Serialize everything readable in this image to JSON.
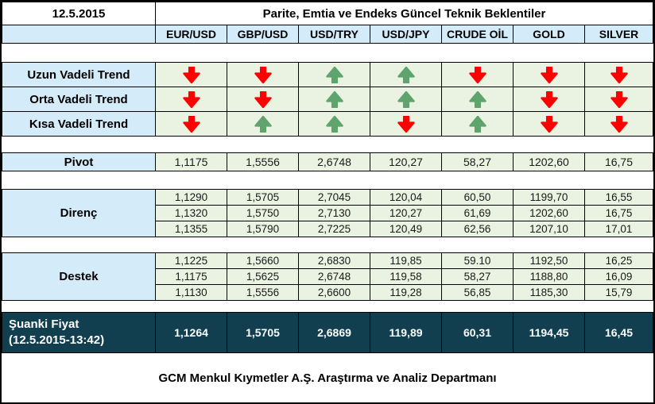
{
  "header": {
    "date": "12.5.2015",
    "title": "Parite, Emtia ve Endeks Güncel Teknik Beklentiler",
    "columns": [
      "EUR/USD",
      "GBP/USD",
      "USD/TRY",
      "USD/JPY",
      "CRUDE OİL",
      "GOLD",
      "SILVER"
    ]
  },
  "trends": {
    "rows": [
      {
        "label": "Uzun Vadeli Trend",
        "directions": [
          "down",
          "down",
          "up",
          "up",
          "down",
          "down",
          "down"
        ]
      },
      {
        "label": "Orta Vadeli Trend",
        "directions": [
          "down",
          "down",
          "up",
          "up",
          "up",
          "down",
          "down"
        ]
      },
      {
        "label": "Kısa Vadeli Trend",
        "directions": [
          "down",
          "up",
          "up",
          "down",
          "up",
          "down",
          "down"
        ]
      }
    ]
  },
  "pivot": {
    "label": "Pivot",
    "values": [
      "1,1175",
      "1,5556",
      "2,6748",
      "120,27",
      "58,27",
      "1202,60",
      "16,75"
    ]
  },
  "resistance": {
    "label": "Direnç",
    "rows": [
      [
        "1,1290",
        "1,5705",
        "2,7045",
        "120,04",
        "60,50",
        "1199,70",
        "16,55"
      ],
      [
        "1,1320",
        "1,5750",
        "2,7130",
        "120,27",
        "61,69",
        "1202,60",
        "16,75"
      ],
      [
        "1,1355",
        "1,5790",
        "2,7225",
        "120,49",
        "62,56",
        "1207,10",
        "17,01"
      ]
    ]
  },
  "support": {
    "label": "Destek",
    "rows": [
      [
        "1,1225",
        "1,5660",
        "2,6830",
        "119,85",
        "59.10",
        "1192,50",
        "16,25"
      ],
      [
        "1,1175",
        "1,5625",
        "2,6748",
        "119,58",
        "58,27",
        "1188,80",
        "16,09"
      ],
      [
        "1,1130",
        "1,5556",
        "2,6600",
        "119,28",
        "56,85",
        "1185,30",
        "15,79"
      ]
    ]
  },
  "current": {
    "label": "Şuanki Fiyat",
    "sublabel": "(12.5.2015-13:42)",
    "values": [
      "1,1264",
      "1,5705",
      "2,6869",
      "119,89",
      "60,31",
      "1194,45",
      "16,45"
    ]
  },
  "footer": {
    "text": "GCM Menkul Kıymetler A.Ş. Araştırma ve Analiz Departmanı"
  },
  "colors": {
    "label_bg": "#d4ebf9",
    "cell_bg": "#eaf2e2",
    "dark_bg": "#123f4f",
    "arrow_up": "#5ea46c",
    "arrow_down": "#fe0000"
  }
}
